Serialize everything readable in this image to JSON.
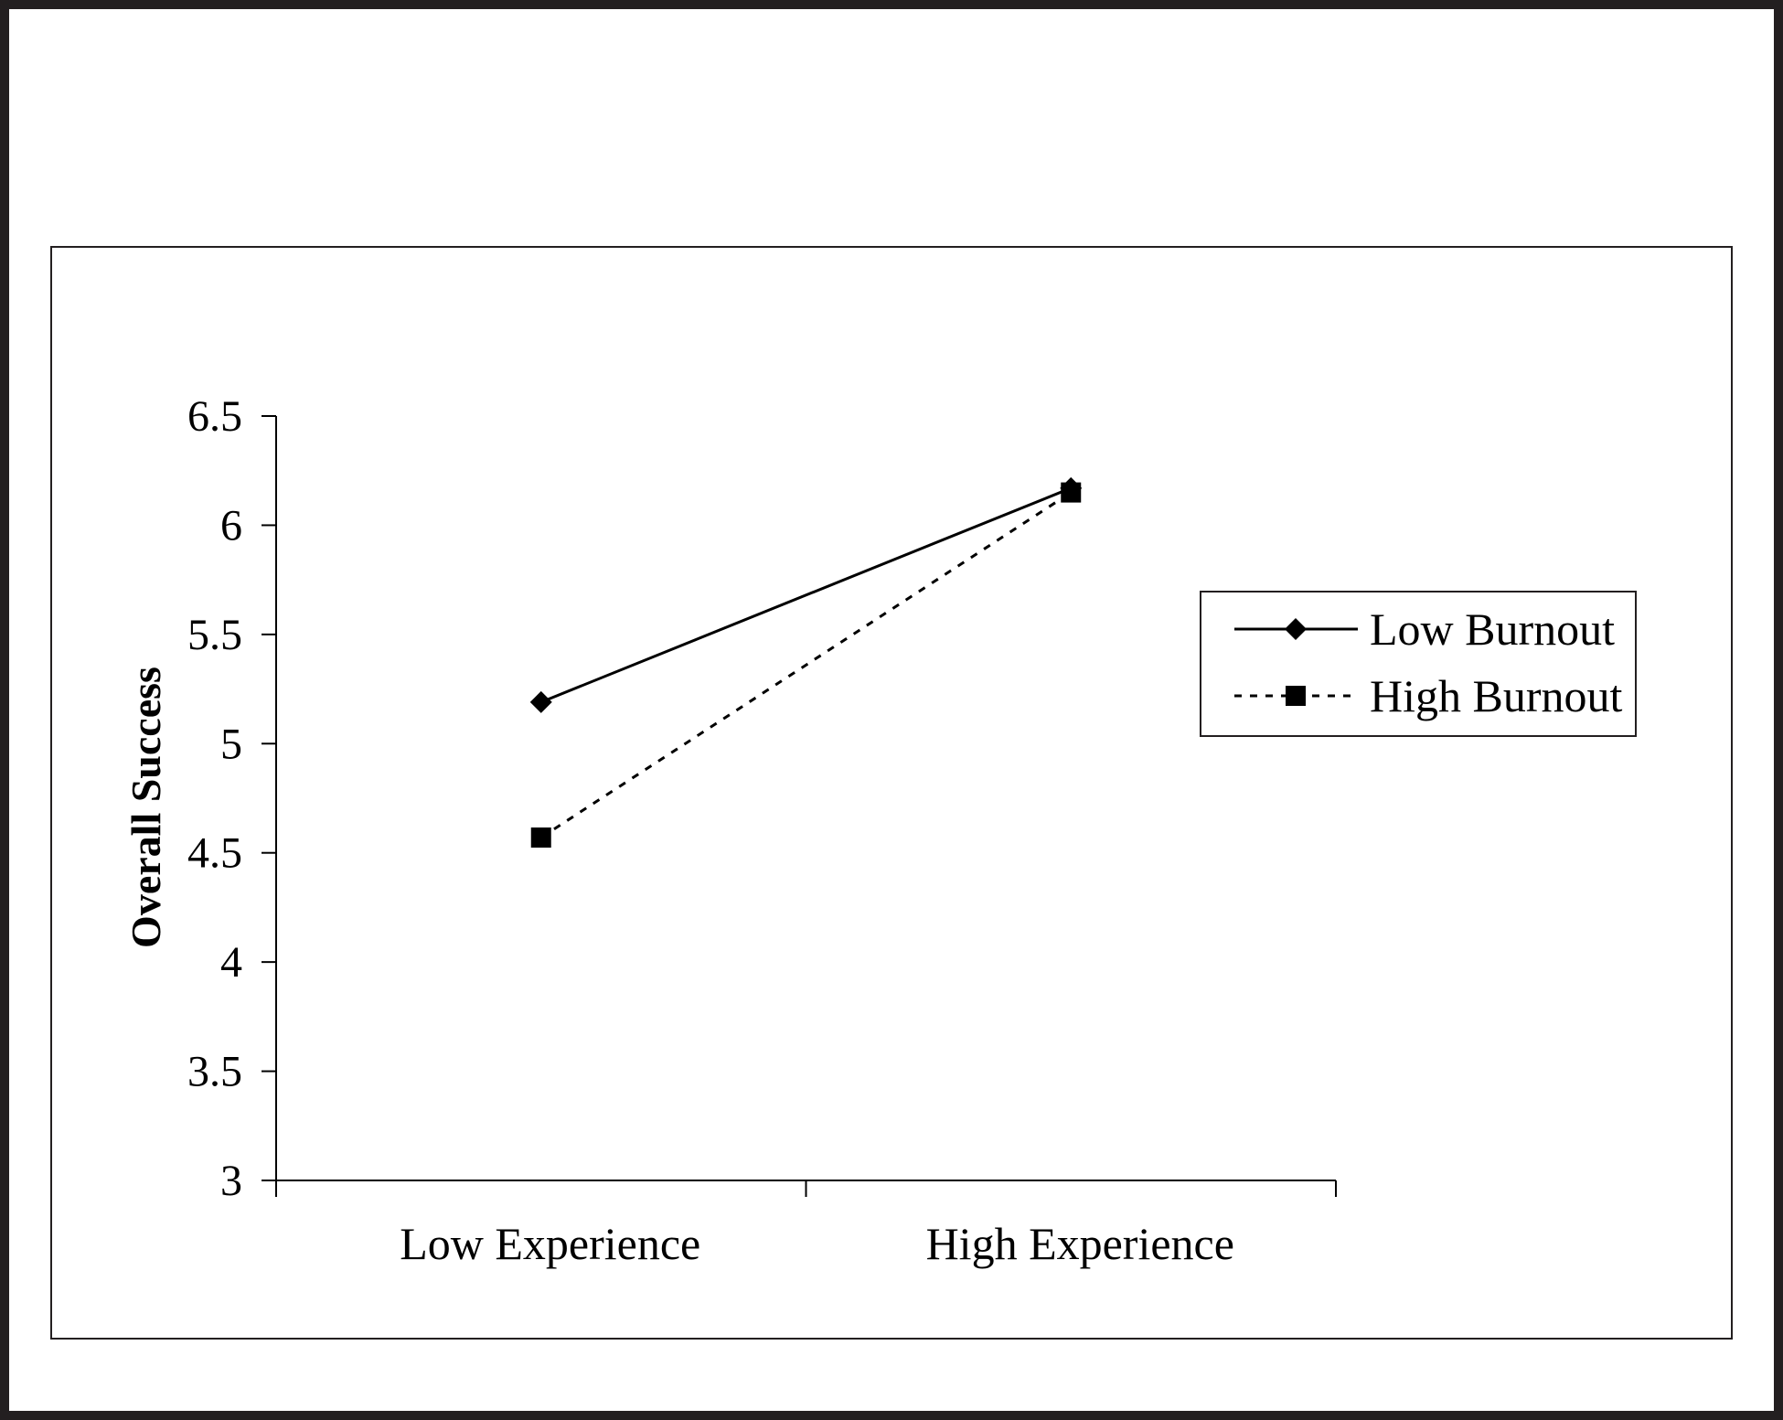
{
  "chart_data": {
    "type": "line",
    "categories": [
      "Low Experience",
      "High Experience"
    ],
    "series": [
      {
        "name": "Low Burnout",
        "values": [
          5.19,
          6.17
        ],
        "marker": "diamond",
        "line_style": "solid"
      },
      {
        "name": "High Burnout",
        "values": [
          4.57,
          6.15
        ],
        "marker": "square",
        "line_style": "dashed"
      }
    ],
    "title": "",
    "xlabel": "",
    "ylabel": "Overall Success",
    "ylim": [
      3,
      6.5
    ],
    "yticks": [
      "3",
      "3.5",
      "4",
      "4.5",
      "5",
      "5.5",
      "6",
      "6.5"
    ],
    "grid": false,
    "legend_position": "right",
    "colors": {
      "line": "#000000",
      "frame": "#231f20",
      "background": "#ffffff"
    }
  }
}
